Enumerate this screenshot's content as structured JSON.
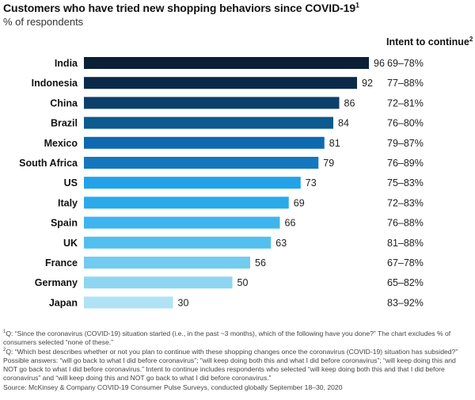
{
  "header": {
    "title": "Customers who have tried new shopping behaviors since COVID-19",
    "title_mark": "1",
    "subtitle": "% of respondents",
    "intent_header": "Intent to continue",
    "intent_mark": "2"
  },
  "chart_data": {
    "type": "bar",
    "orientation": "horizontal",
    "categories": [
      "India",
      "Indonesia",
      "China",
      "Brazil",
      "Mexico",
      "South Africa",
      "US",
      "Italy",
      "Spain",
      "UK",
      "France",
      "Germany",
      "Japan"
    ],
    "values": [
      96,
      92,
      86,
      84,
      81,
      79,
      73,
      69,
      66,
      63,
      56,
      50,
      30
    ],
    "intent_to_continue": [
      "69–78%",
      "77–88%",
      "72–81%",
      "76–80%",
      "79–87%",
      "76–89%",
      "75–83%",
      "72–83%",
      "76–88%",
      "81–88%",
      "67–78%",
      "65–82%",
      "83–92%"
    ],
    "xlim": [
      0,
      100
    ],
    "grid": false,
    "colors": [
      "#0b1f35",
      "#0b2a4a",
      "#0c3f6b",
      "#0d5a8f",
      "#0e6ab0",
      "#1577c0",
      "#22a2e8",
      "#2aaaeb",
      "#3eb5ee",
      "#52bfee",
      "#72cbf0",
      "#8dd6f2",
      "#b0e2f5"
    ]
  },
  "footnotes": {
    "note1_mark": "1",
    "note1": "Q: “Since the coronavirus (COVID-19) situation started (i.e., in the past ~3 months), which of the following have you done?” The chart excludes % of consumers selected “none of these.”",
    "note2_mark": "2",
    "note2": "Q: “Which best describes whether or not you plan to continue with these shopping changes once the coronavirus (COVID-19) situation has subsided?” Possible answers: “will go back to what I did before coronavirus”; “will keep doing both this and what I did before coronavirus”; “will keep doing this and NOT go back to what I did before coronavirus.” Intent to continue includes respondents who selected “will keep doing both this and that I did before coronavirus” and “will keep doing this and NOT go back to what I did before coronavirus.”",
    "source": "Source: McKinsey & Company COVID-19 Consumer Pulse Surveys, conducted globally September 18–30, 2020"
  }
}
